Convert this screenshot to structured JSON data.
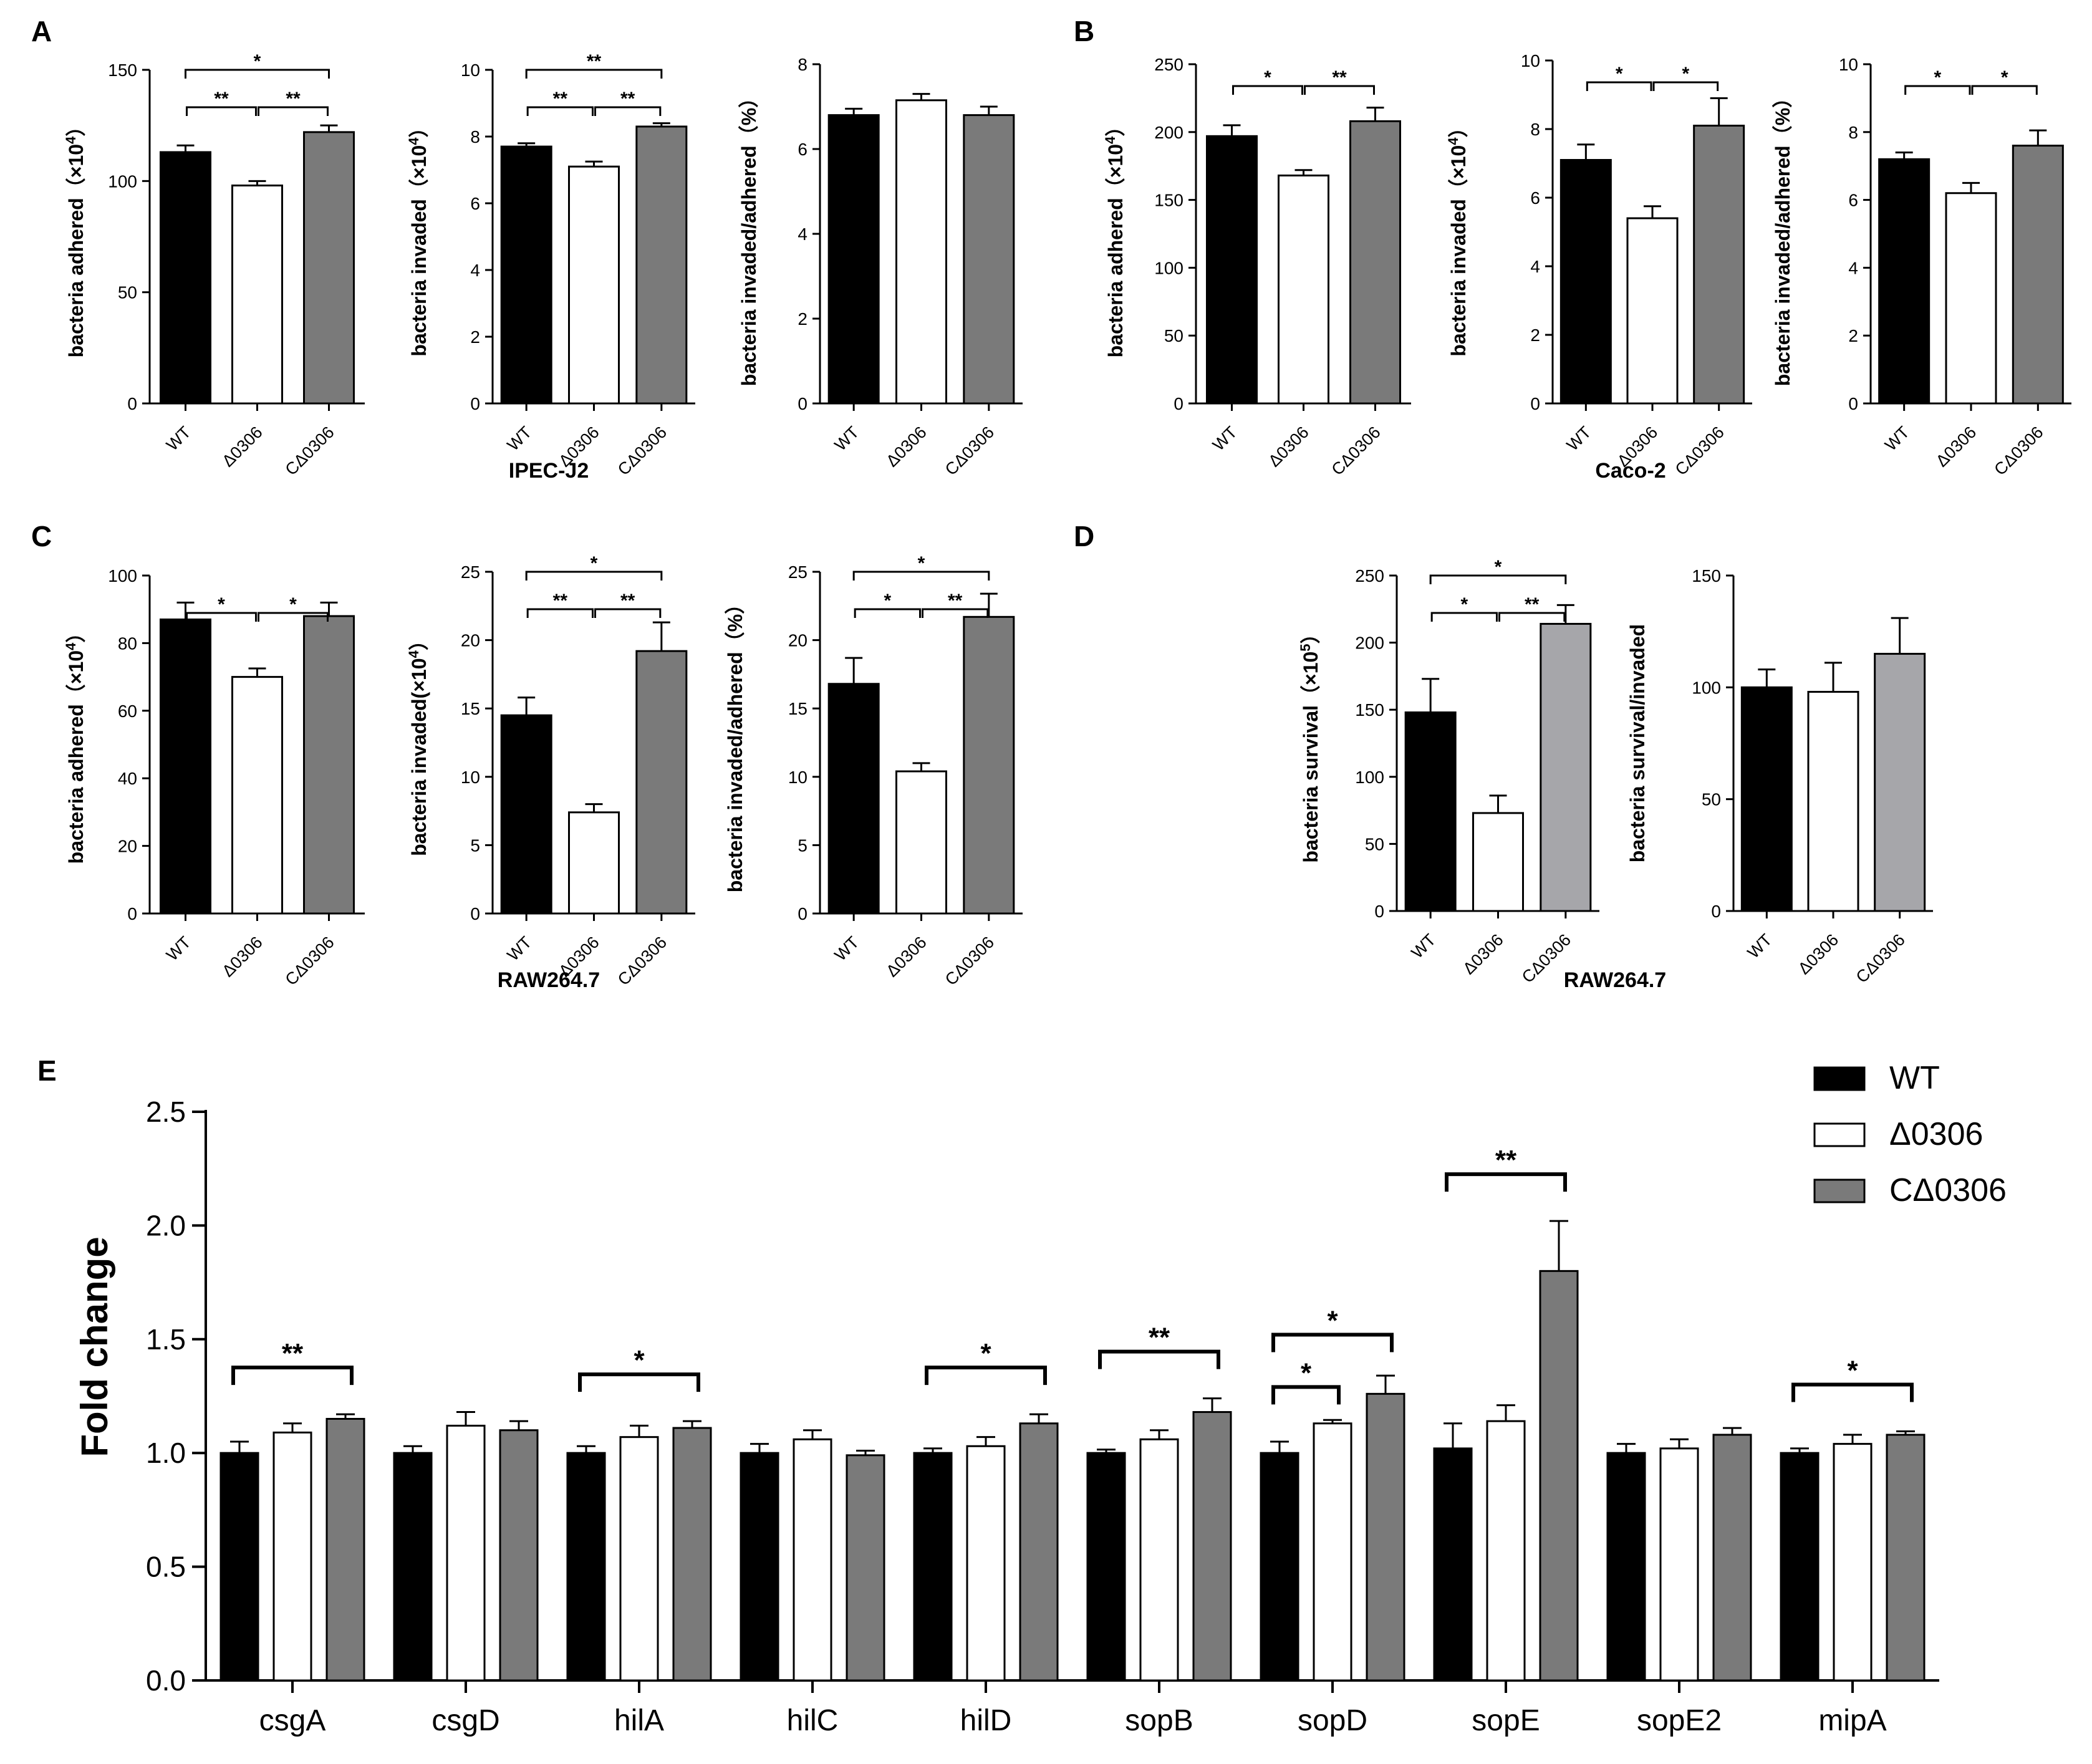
{
  "panel_letters": [
    "A",
    "B",
    "C",
    "D",
    "E"
  ],
  "group_labels": {
    "a": "IPEC-J2",
    "b": "Caco-2",
    "c": "RAW264.7",
    "d": "RAW264.7"
  },
  "colors": {
    "wt": "#000000",
    "mut": "#ffffff",
    "comp": "#7a7a7a",
    "comp_light": "#a6a6aa"
  },
  "chart_data": [
    {
      "panel": "A",
      "type": "bar",
      "title": "",
      "xlabel": "",
      "ylabel": "bacteria adhered (×10⁴)",
      "ylabel_main": "bacteria adhered（×10",
      "ylabel_exp": "4",
      "ylabel_tail": "）",
      "categories": [
        "WT",
        "Δ0306",
        "CΔ0306"
      ],
      "values": [
        113,
        98,
        122
      ],
      "errors": [
        3,
        2,
        3
      ],
      "ylim": [
        0,
        150
      ],
      "yticks": [
        0,
        50,
        100,
        150
      ],
      "significance": [
        {
          "from": 0,
          "to": 1,
          "label": "**"
        },
        {
          "from": 1,
          "to": 2,
          "label": "**"
        },
        {
          "from": 0,
          "to": 2,
          "label": "*"
        }
      ]
    },
    {
      "panel": "A",
      "type": "bar",
      "title": "",
      "xlabel": "",
      "ylabel": "bacteria invaded (×10⁴)",
      "ylabel_main": "bacteria invaded（×10",
      "ylabel_exp": "4",
      "ylabel_tail": "）",
      "categories": [
        "WT",
        "Δ0306",
        "CΔ0306"
      ],
      "values": [
        7.7,
        7.1,
        8.3
      ],
      "errors": [
        0.1,
        0.15,
        0.1
      ],
      "ylim": [
        0,
        10
      ],
      "yticks": [
        0,
        2,
        4,
        6,
        8,
        10
      ],
      "significance": [
        {
          "from": 0,
          "to": 1,
          "label": "**"
        },
        {
          "from": 1,
          "to": 2,
          "label": "**"
        },
        {
          "from": 0,
          "to": 2,
          "label": "**"
        }
      ]
    },
    {
      "panel": "A",
      "type": "bar",
      "title": "",
      "xlabel": "",
      "ylabel": "bacteria invaded/adhered (%)",
      "ylabel_main": "bacteria invaded/adhered（%）",
      "ylabel_exp": "",
      "ylabel_tail": "",
      "categories": [
        "WT",
        "Δ0306",
        "CΔ0306"
      ],
      "values": [
        6.8,
        7.15,
        6.8
      ],
      "errors": [
        0.15,
        0.15,
        0.2
      ],
      "ylim": [
        0,
        8
      ],
      "yticks": [
        0,
        2,
        4,
        6,
        8
      ],
      "significance": []
    },
    {
      "panel": "B",
      "type": "bar",
      "title": "",
      "xlabel": "",
      "ylabel": "bacteria adhered (×10⁴)",
      "ylabel_main": "bacteria adhered（×10",
      "ylabel_exp": "4",
      "ylabel_tail": "）",
      "categories": [
        "WT",
        "Δ0306",
        "CΔ0306"
      ],
      "values": [
        197,
        168,
        208
      ],
      "errors": [
        8,
        4,
        10
      ],
      "ylim": [
        0,
        250
      ],
      "yticks": [
        0,
        50,
        100,
        150,
        200,
        250
      ],
      "significance": [
        {
          "from": 0,
          "to": 1,
          "label": "*"
        },
        {
          "from": 1,
          "to": 2,
          "label": "**"
        }
      ]
    },
    {
      "panel": "B",
      "type": "bar",
      "title": "",
      "xlabel": "",
      "ylabel": "bacteria invaded (×10⁴)",
      "ylabel_main": "bacteria invaded（×10",
      "ylabel_exp": "4",
      "ylabel_tail": "）",
      "categories": [
        "WT",
        "Δ0306",
        "CΔ0306"
      ],
      "values": [
        7.1,
        5.4,
        8.1
      ],
      "errors": [
        0.45,
        0.35,
        0.8
      ],
      "ylim": [
        0,
        10
      ],
      "yticks": [
        0,
        2,
        4,
        6,
        8,
        10
      ],
      "significance": [
        {
          "from": 0,
          "to": 1,
          "label": "*"
        },
        {
          "from": 1,
          "to": 2,
          "label": "*"
        }
      ]
    },
    {
      "panel": "B",
      "type": "bar",
      "title": "",
      "xlabel": "",
      "ylabel": "bacteria invaded/adhered (%)",
      "ylabel_main": "bacteria invaded/adhered（%）",
      "ylabel_exp": "",
      "ylabel_tail": "",
      "categories": [
        "WT",
        "Δ0306",
        "CΔ0306"
      ],
      "values": [
        7.2,
        6.2,
        7.6
      ],
      "errors": [
        0.2,
        0.3,
        0.45
      ],
      "ylim": [
        0,
        10
      ],
      "yticks": [
        0,
        2,
        4,
        6,
        8,
        10
      ],
      "significance": [
        {
          "from": 0,
          "to": 1,
          "label": "*"
        },
        {
          "from": 1,
          "to": 2,
          "label": "*"
        }
      ]
    },
    {
      "panel": "C",
      "type": "bar",
      "title": "",
      "xlabel": "",
      "ylabel": "bacteria adhered (×10⁴)",
      "ylabel_main": "bacteria adhered（×10",
      "ylabel_exp": "4",
      "ylabel_tail": "）",
      "categories": [
        "WT",
        "Δ0306",
        "CΔ0306"
      ],
      "values": [
        87,
        70,
        88
      ],
      "errors": [
        5,
        2.5,
        4
      ],
      "ylim": [
        0,
        100
      ],
      "yticks": [
        0,
        20,
        40,
        60,
        80,
        100
      ],
      "significance": [
        {
          "from": 0,
          "to": 1,
          "label": "*"
        },
        {
          "from": 1,
          "to": 2,
          "label": "*"
        }
      ]
    },
    {
      "panel": "C",
      "type": "bar",
      "title": "",
      "xlabel": "",
      "ylabel": "bacteria invaded (×10⁴)",
      "ylabel_main": "bacteria invaded(×10",
      "ylabel_exp": "4",
      "ylabel_tail": "）",
      "categories": [
        "WT",
        "Δ0306",
        "CΔ0306"
      ],
      "values": [
        14.5,
        7.4,
        19.2
      ],
      "errors": [
        1.3,
        0.6,
        2.1
      ],
      "ylim": [
        0,
        25
      ],
      "yticks": [
        0,
        5,
        10,
        15,
        20,
        25
      ],
      "significance": [
        {
          "from": 0,
          "to": 1,
          "label": "**"
        },
        {
          "from": 1,
          "to": 2,
          "label": "**"
        },
        {
          "from": 0,
          "to": 2,
          "label": "*"
        }
      ]
    },
    {
      "panel": "C",
      "type": "bar",
      "title": "",
      "xlabel": "",
      "ylabel": "bacteria invaded/adhered (%)",
      "ylabel_main": "bacteria invaded/adhered（%）",
      "ylabel_exp": "",
      "ylabel_tail": "",
      "categories": [
        "WT",
        "Δ0306",
        "CΔ0306"
      ],
      "values": [
        16.8,
        10.4,
        21.7
      ],
      "errors": [
        1.9,
        0.6,
        1.7
      ],
      "ylim": [
        0,
        25
      ],
      "yticks": [
        0,
        5,
        10,
        15,
        20,
        25
      ],
      "significance": [
        {
          "from": 0,
          "to": 1,
          "label": "*"
        },
        {
          "from": 1,
          "to": 2,
          "label": "**"
        },
        {
          "from": 0,
          "to": 2,
          "label": "*"
        }
      ]
    },
    {
      "panel": "D",
      "type": "bar",
      "title": "",
      "xlabel": "",
      "ylabel": "bacteria survival (×10⁵)",
      "ylabel_main": "bacteria survival（×10",
      "ylabel_exp": "5",
      "ylabel_tail": "）",
      "categories": [
        "WT",
        "Δ0306",
        "CΔ0306"
      ],
      "values": [
        148,
        73,
        214
      ],
      "errors": [
        25,
        13,
        14
      ],
      "ylim": [
        0,
        250
      ],
      "yticks": [
        0,
        50,
        100,
        150,
        200,
        250
      ],
      "significance": [
        {
          "from": 0,
          "to": 1,
          "label": "*"
        },
        {
          "from": 1,
          "to": 2,
          "label": "**"
        },
        {
          "from": 0,
          "to": 2,
          "label": "*"
        }
      ]
    },
    {
      "panel": "D",
      "type": "bar",
      "title": "",
      "xlabel": "",
      "ylabel": "bacteria survival/invaded",
      "ylabel_main": "bacteria survival/invaded",
      "ylabel_exp": "",
      "ylabel_tail": "",
      "categories": [
        "WT",
        "Δ0306",
        "CΔ0306"
      ],
      "values": [
        100,
        98,
        115
      ],
      "errors": [
        8,
        13,
        16
      ],
      "ylim": [
        0,
        150
      ],
      "yticks": [
        0,
        50,
        100,
        150
      ],
      "significance": []
    },
    {
      "panel": "E",
      "type": "bar",
      "title": "",
      "xlabel": "",
      "ylabel": "Fold change",
      "categories": [
        "csgA",
        "csgD",
        "hilA",
        "hilC",
        "hilD",
        "sopB",
        "sopD",
        "sopE",
        "sopE2",
        "mipA"
      ],
      "ylim": [
        0,
        2.5
      ],
      "yticks": [
        "0.0",
        "0.5",
        "1.0",
        "1.5",
        "2.0",
        "2.5"
      ],
      "legend": {
        "position": "top-right",
        "entries": [
          "WT",
          "Δ0306",
          "CΔ0306"
        ]
      },
      "series": [
        {
          "name": "WT",
          "values": [
            1.0,
            1.0,
            1.0,
            1.0,
            1.0,
            1.0,
            1.0,
            1.02,
            1.0,
            1.0
          ],
          "errors": [
            0.05,
            0.03,
            0.03,
            0.04,
            0.02,
            0.015,
            0.05,
            0.11,
            0.04,
            0.02
          ]
        },
        {
          "name": "Δ0306",
          "values": [
            1.09,
            1.12,
            1.07,
            1.06,
            1.03,
            1.06,
            1.13,
            1.14,
            1.02,
            1.04
          ],
          "errors": [
            0.04,
            0.06,
            0.05,
            0.04,
            0.04,
            0.04,
            0.015,
            0.07,
            0.04,
            0.04
          ]
        },
        {
          "name": "CΔ0306",
          "values": [
            1.15,
            1.1,
            1.11,
            0.99,
            1.13,
            1.18,
            1.26,
            1.8,
            1.08,
            1.08
          ],
          "errors": [
            0.02,
            0.04,
            0.03,
            0.02,
            0.04,
            0.06,
            0.08,
            0.22,
            0.03,
            0.015
          ]
        }
      ],
      "significance": [
        {
          "group": 0,
          "from": 0,
          "to": 2,
          "label": "**"
        },
        {
          "group": 2,
          "from": 0,
          "to": 2,
          "label": "*"
        },
        {
          "group": 4,
          "from": 0,
          "to": 2,
          "label": "*"
        },
        {
          "group": 5,
          "from": 0,
          "to": 2,
          "label": "**"
        },
        {
          "group": 6,
          "from": 0,
          "to": 1,
          "label": "*"
        },
        {
          "group": 6,
          "from": 0,
          "to": 2,
          "label": "*"
        },
        {
          "group": 7,
          "from": 0,
          "to": 2,
          "label": "**"
        },
        {
          "group": 9,
          "from": 0,
          "to": 2,
          "label": "*"
        }
      ]
    }
  ]
}
